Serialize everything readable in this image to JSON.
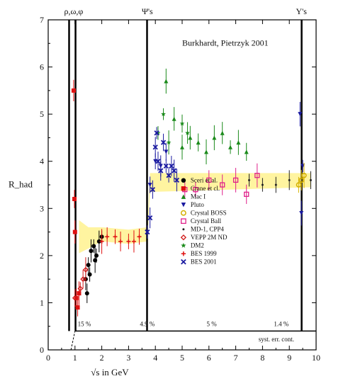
{
  "chart_data": {
    "type": "scatter",
    "title": "Burkhardt, Pietrzyk 2001",
    "xlabel": "√s in GeV",
    "ylabel": "R_had",
    "xlim": [
      0,
      10
    ],
    "ylim": [
      0,
      7
    ],
    "x_ticks": [
      "0",
      "1",
      "2",
      "3",
      "4",
      "5",
      "6",
      "7",
      "8",
      "9",
      "10"
    ],
    "y_ticks": [
      "0",
      "1",
      "2",
      "3",
      "4",
      "5",
      "6",
      "7"
    ],
    "resonance_labels": [
      {
        "text": "ρ,ω,φ",
        "x": 0.95
      },
      {
        "text": "Ψ's",
        "x": 3.7
      },
      {
        "text": "Υ's",
        "x": 9.45
      }
    ],
    "resonance_lines_x": [
      0.78,
      1.02,
      3.69,
      9.46
    ],
    "syst_error": {
      "label": "syst. err. cont.",
      "regions": [
        {
          "text": "15 %",
          "x": 1.35
        },
        {
          "text": "4.9 %",
          "x": 3.7
        },
        {
          "text": "5 %",
          "x": 6.1
        },
        {
          "text": "1.4 %",
          "x": 8.7
        }
      ]
    },
    "legend_placement": "center",
    "series": [
      {
        "name": "Sceri et al.",
        "marker": "circle",
        "color": "#000000",
        "points": [
          [
            1.4,
            1.5
          ],
          [
            1.5,
            1.8
          ],
          [
            1.6,
            2.1
          ],
          [
            1.7,
            2.2
          ],
          [
            1.8,
            2.0
          ],
          [
            1.9,
            2.3
          ],
          [
            2.0,
            2.4
          ],
          [
            1.45,
            1.2
          ],
          [
            1.55,
            1.6
          ],
          [
            1.75,
            1.9
          ]
        ]
      },
      {
        "name": "Crane et cl.",
        "marker": "square",
        "color": "#e01010",
        "points": [
          [
            0.95,
            5.5
          ],
          [
            0.98,
            3.2
          ],
          [
            1.0,
            2.5
          ],
          [
            1.05,
            1.1
          ],
          [
            1.1,
            0.9
          ],
          [
            1.15,
            1.2
          ]
        ]
      },
      {
        "name": "Mac I",
        "marker": "triangle-up",
        "color": "#1a8a1a",
        "points": [
          [
            5.0,
            4.3
          ],
          [
            5.3,
            4.5
          ],
          [
            5.6,
            4.4
          ],
          [
            5.9,
            4.2
          ],
          [
            6.2,
            4.5
          ],
          [
            6.5,
            4.6
          ],
          [
            6.8,
            4.3
          ],
          [
            7.1,
            4.4
          ],
          [
            7.4,
            4.2
          ],
          [
            4.4,
            5.7
          ],
          [
            4.7,
            4.9
          ]
        ]
      },
      {
        "name": "Pluto",
        "marker": "triangle-down",
        "color": "#1a1aa0",
        "points": [
          [
            3.8,
            3.5
          ],
          [
            4.0,
            4.0
          ],
          [
            4.2,
            3.9
          ],
          [
            4.4,
            4.2
          ],
          [
            9.4,
            5.0
          ],
          [
            9.5,
            3.9
          ],
          [
            9.45,
            2.9
          ]
        ]
      },
      {
        "name": "Crystal BOSS",
        "marker": "circle-open",
        "color": "#d4b000",
        "points": [
          [
            9.45,
            3.6
          ],
          [
            9.55,
            3.7
          ],
          [
            9.35,
            3.5
          ]
        ]
      },
      {
        "name": "Crystal Ball",
        "marker": "square-open",
        "color": "#e0208a",
        "points": [
          [
            5.1,
            3.4
          ],
          [
            5.5,
            3.4
          ],
          [
            6.0,
            3.6
          ],
          [
            6.5,
            3.5
          ],
          [
            7.0,
            3.6
          ],
          [
            7.4,
            3.3
          ],
          [
            7.8,
            3.7
          ]
        ]
      },
      {
        "name": "MD-1, CPP4",
        "marker": "dot",
        "color": "#222222",
        "points": [
          [
            7.5,
            3.6
          ],
          [
            8.0,
            3.5
          ],
          [
            8.5,
            3.5
          ],
          [
            9.0,
            3.6
          ],
          [
            9.8,
            3.6
          ]
        ]
      },
      {
        "name": "VEPP 2M ND",
        "marker": "diamond-open",
        "color": "#d01818",
        "points": [
          [
            1.2,
            1.3
          ],
          [
            1.3,
            1.5
          ],
          [
            1.4,
            1.7
          ],
          [
            1.0,
            1.1
          ]
        ]
      },
      {
        "name": "DM2",
        "marker": "star",
        "color": "#1a8a1a",
        "points": [
          [
            4.1,
            4.6
          ],
          [
            4.3,
            5.0
          ],
          [
            4.5,
            4.4
          ],
          [
            5.0,
            4.8
          ],
          [
            5.2,
            4.6
          ]
        ]
      },
      {
        "name": "BES 1999",
        "marker": "cross",
        "color": "#e01010",
        "points": [
          [
            2.0,
            2.3
          ],
          [
            2.2,
            2.4
          ],
          [
            2.5,
            2.4
          ],
          [
            2.7,
            2.3
          ],
          [
            3.0,
            2.3
          ],
          [
            3.2,
            2.3
          ],
          [
            3.4,
            2.4
          ]
        ]
      },
      {
        "name": "BES 2001",
        "marker": "x",
        "color": "#1a1aa0",
        "points": [
          [
            3.7,
            2.5
          ],
          [
            3.8,
            2.8
          ],
          [
            3.9,
            3.4
          ],
          [
            4.0,
            4.3
          ],
          [
            4.05,
            4.6
          ],
          [
            4.1,
            4.0
          ],
          [
            4.2,
            3.8
          ],
          [
            4.3,
            4.4
          ],
          [
            4.4,
            3.9
          ],
          [
            4.5,
            3.7
          ],
          [
            4.6,
            3.9
          ],
          [
            4.7,
            3.8
          ],
          [
            4.8,
            3.6
          ]
        ]
      }
    ]
  }
}
